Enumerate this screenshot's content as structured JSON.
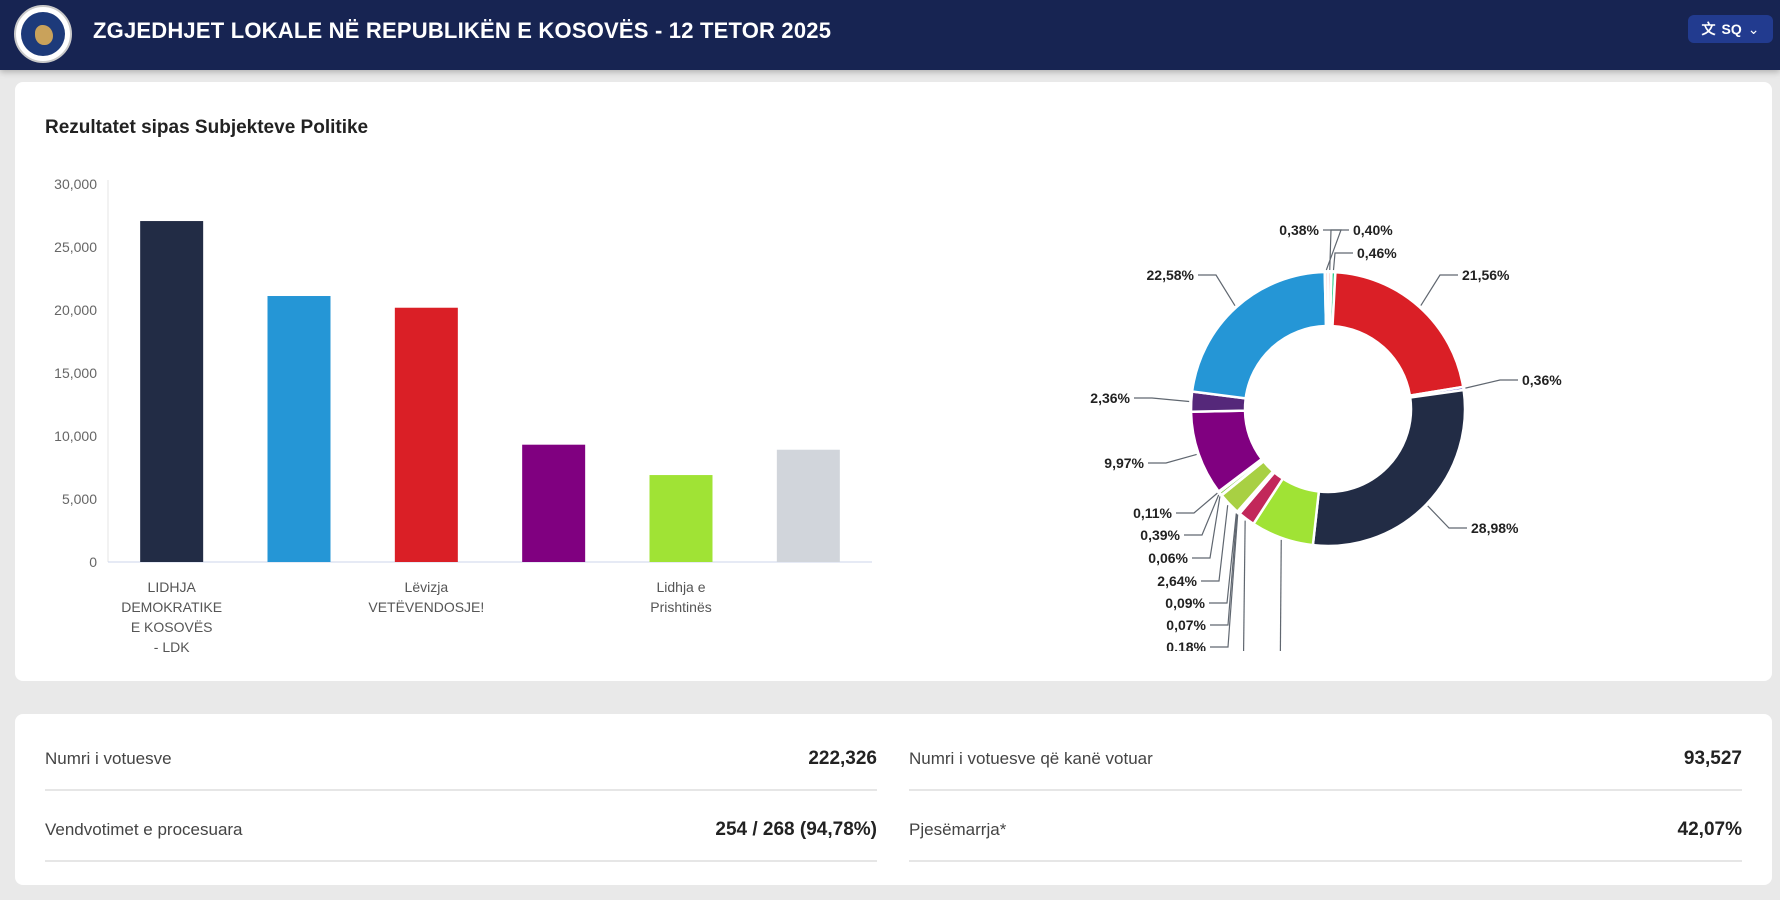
{
  "header": {
    "title": "ZGJEDHJET LOKALE NË REPUBLIKËN E KOSOVËS - 12 TETOR 2025",
    "language": "SQ",
    "language_icon": "translate-icon",
    "chevron_icon": "chevron-down-icon",
    "background": "#172452"
  },
  "results": {
    "title": "Rezultatet sipas Subjekteve Politike"
  },
  "chart_data": [
    {
      "type": "bar",
      "categories": [
        "LIDHJA DEMOKRATIKE E KOSOVËS - LDK",
        "",
        "Lëvizja VETËVENDOSJE!",
        "",
        "Lidhja e Prishtinës",
        ""
      ],
      "category_lines": [
        [
          "LIDHJA",
          "DEMOKRATIKE",
          "E KOSOVËS",
          "- LDK"
        ],
        [],
        [
          "Lëvizja",
          "VETËVENDOSJE!"
        ],
        [],
        [
          "Lidhja e",
          "Prishtinës"
        ],
        []
      ],
      "values": [
        27060,
        21110,
        20180,
        9310,
        6900,
        8910
      ],
      "colors": [
        "#222c45",
        "#2596d6",
        "#da1f26",
        "#800080",
        "#a0e335",
        "#d1d5db"
      ],
      "yticks": [
        "0",
        "5,000",
        "10,000",
        "15,000",
        "20,000",
        "25,000",
        "30,000"
      ],
      "ylim": [
        0,
        30000
      ],
      "grid": false,
      "legend": "none"
    },
    {
      "type": "pie",
      "donut": true,
      "slices": [
        {
          "value": 0.4,
          "label": "0,40%",
          "color": "#f6c9c9"
        },
        {
          "value": 0.46,
          "label": "0,46%",
          "color": "#2ecc8a"
        },
        {
          "value": 21.56,
          "label": "21,56%",
          "color": "#da1f26"
        },
        {
          "value": 0.36,
          "label": "0,36%",
          "color": "#5b4fc4"
        },
        {
          "value": 28.98,
          "label": "28,98%",
          "color": "#222c45"
        },
        {
          "value": 7.4,
          "label": "",
          "color": "#a0e335"
        },
        {
          "value": 2.01,
          "label": "",
          "color": "#c2285a"
        },
        {
          "value": 0.18,
          "label": "0,18%",
          "color": "#9aa0a6"
        },
        {
          "value": 0.07,
          "label": "0,07%",
          "color": "#6b8e23"
        },
        {
          "value": 0.09,
          "label": "0,09%",
          "color": "#3c9a5f"
        },
        {
          "value": 2.64,
          "label": "2,64%",
          "color": "#a8d043"
        },
        {
          "value": 0.06,
          "label": "0,06%",
          "color": "#4caf50"
        },
        {
          "value": 0.39,
          "label": "0,39%",
          "color": "#7ac943"
        },
        {
          "value": 0.11,
          "label": "0,11%",
          "color": "#2ecc71"
        },
        {
          "value": 9.97,
          "label": "9,97%",
          "color": "#800080"
        },
        {
          "value": 2.36,
          "label": "2,36%",
          "color": "#55287a"
        },
        {
          "value": 22.58,
          "label": "22,58%",
          "color": "#2596d6"
        },
        {
          "value": 0.38,
          "label": "0,38%",
          "color": "#f8d7d7"
        }
      ]
    }
  ],
  "stats": [
    {
      "label": "Numri i votuesve",
      "value": "222,326"
    },
    {
      "label": "Numri i votuesve që kanë votuar",
      "value": "93,527"
    },
    {
      "label": "Vendvotimet e procesuara",
      "value": "254 / 268 (94,78%)"
    },
    {
      "label": "Pjesëmarrja*",
      "value": "42,07%"
    }
  ]
}
